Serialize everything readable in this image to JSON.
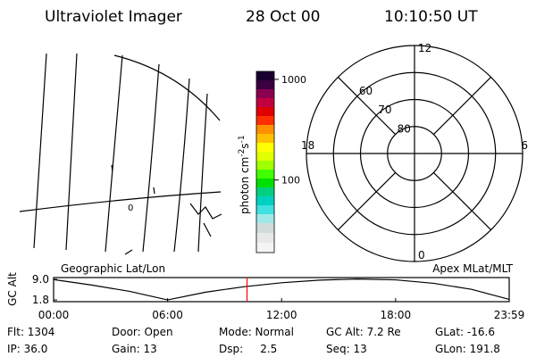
{
  "header": {
    "instrument": "Ultraviolet Imager",
    "date": "28 Oct 00",
    "time": "10:10:50 UT"
  },
  "map": {
    "title": "Geographic Lat/Lon",
    "line_label": "0"
  },
  "colorbar": {
    "label": [
      "photon cm",
      "-2",
      "s",
      "-1"
    ],
    "log": true,
    "clim": [
      19,
      1200
    ],
    "ticks": [
      1000,
      100
    ]
  },
  "polar": {
    "title": "Apex MLat/MLT",
    "outer_lat": 50,
    "lat_rings": [
      60,
      70,
      80
    ],
    "pole": 90,
    "mlt_labels": [
      12,
      18,
      6,
      0
    ],
    "lat_labels": [
      60,
      70,
      80
    ]
  },
  "chart_data": {
    "type": "line",
    "ylabel": "GC Alt",
    "x": [
      0,
      2,
      4,
      6,
      8,
      10,
      12,
      14,
      16,
      18,
      20,
      22,
      23.98
    ],
    "series": [
      {
        "color": "#000000",
        "values": [
          8.9,
          7.0,
          4.8,
          1.8,
          4.5,
          6.4,
          7.8,
          8.7,
          9.1,
          8.8,
          7.6,
          5.5,
          2.0
        ]
      }
    ],
    "xlim": [
      0,
      23.98
    ],
    "ylim": [
      1.2,
      9.6
    ],
    "xticks": [
      {
        "value": 0,
        "label": "00:00"
      },
      {
        "value": 6,
        "label": "06:00"
      },
      {
        "value": 12,
        "label": "12:00"
      },
      {
        "value": 18,
        "label": "18:00"
      },
      {
        "value": 23.98,
        "label": "23:59"
      }
    ],
    "yticks": [
      {
        "value": 9.0,
        "label": "9.0"
      },
      1.8
    ],
    "marker_x": 10.18,
    "marker_color": "#ff0000"
  },
  "info": [
    [
      "Flt: 1304",
      "Door: Open",
      "Mode: Normal",
      "GC Alt: 7.2 Re",
      "GLat: -16.6"
    ],
    [
      "IP: 36.0",
      "Gain: 13",
      "Dsp:     2.5",
      "Seq: 13",
      "GLon: 191.8"
    ]
  ]
}
